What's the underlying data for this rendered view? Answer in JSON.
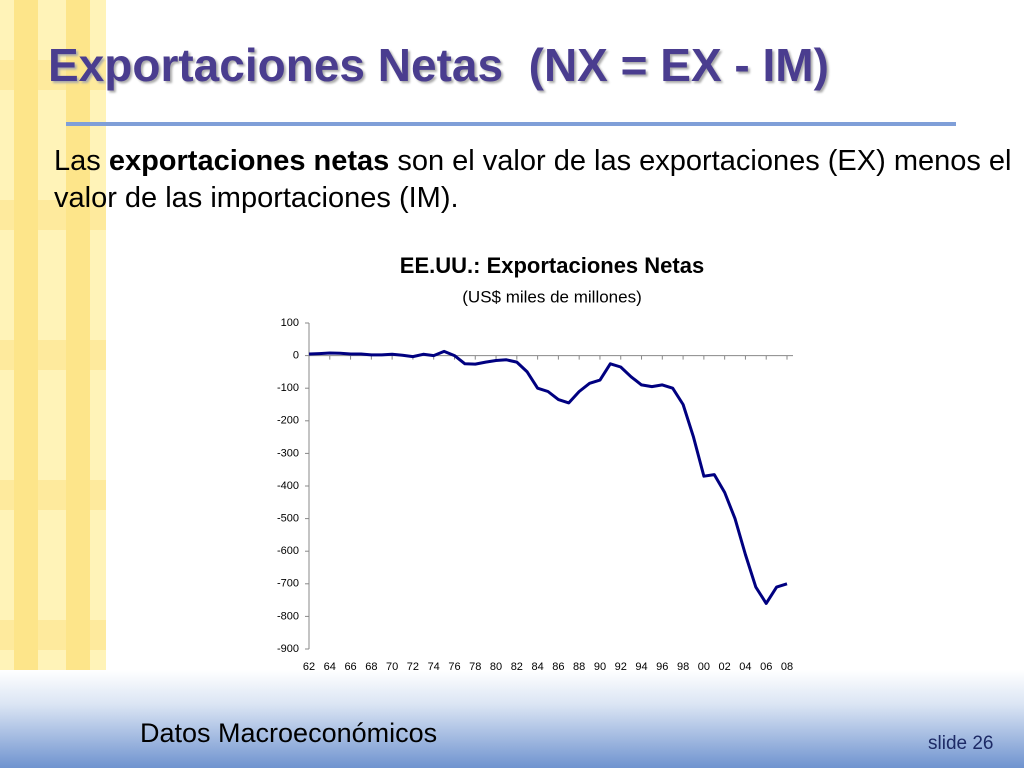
{
  "slide": {
    "title": "Exportaciones Netas  (NX = EX - IM)",
    "body": [
      "Las",
      "exportaciones netas",
      "son el valor de las exportaciones (EX) menos el valor de las importaciones (IM)."
    ],
    "footer": "Datos Macroeconómicos",
    "slide_number": "slide 26"
  },
  "chart_data": {
    "type": "line",
    "title": "EE.UU.: Exportaciones Netas",
    "subtitle": "(US$ miles de millones)",
    "categories": [
      "62",
      null,
      "64",
      null,
      "66",
      null,
      "68",
      null,
      "70",
      null,
      "72",
      null,
      "74",
      null,
      "76",
      null,
      "78",
      null,
      "80",
      null,
      "82",
      null,
      "84",
      null,
      "86",
      null,
      "88",
      null,
      "90",
      null,
      "92",
      null,
      "94",
      null,
      "96",
      null,
      "98",
      null,
      "00",
      null,
      "02",
      null,
      "04",
      null,
      "06",
      null,
      "08"
    ],
    "series": [
      {
        "name": "Exportaciones Netas",
        "color": "#000080",
        "values": [
          5,
          6,
          8,
          7,
          5,
          5,
          2,
          2,
          4,
          1,
          -3,
          4,
          0,
          13,
          0,
          -25,
          -26,
          -20,
          -15,
          -13,
          -20,
          -50,
          -100,
          -110,
          -135,
          -145,
          -110,
          -85,
          -75,
          -25,
          -35,
          -65,
          -90,
          -95,
          -90,
          -100,
          -150,
          -250,
          -370,
          -365,
          -420,
          -500,
          -610,
          -710,
          -760,
          -710,
          -700
        ]
      }
    ],
    "ylim": [
      -900,
      100
    ],
    "yticks": [
      100,
      0,
      -100,
      -200,
      -300,
      -400,
      -500,
      -600,
      -700,
      -800,
      -900
    ]
  }
}
